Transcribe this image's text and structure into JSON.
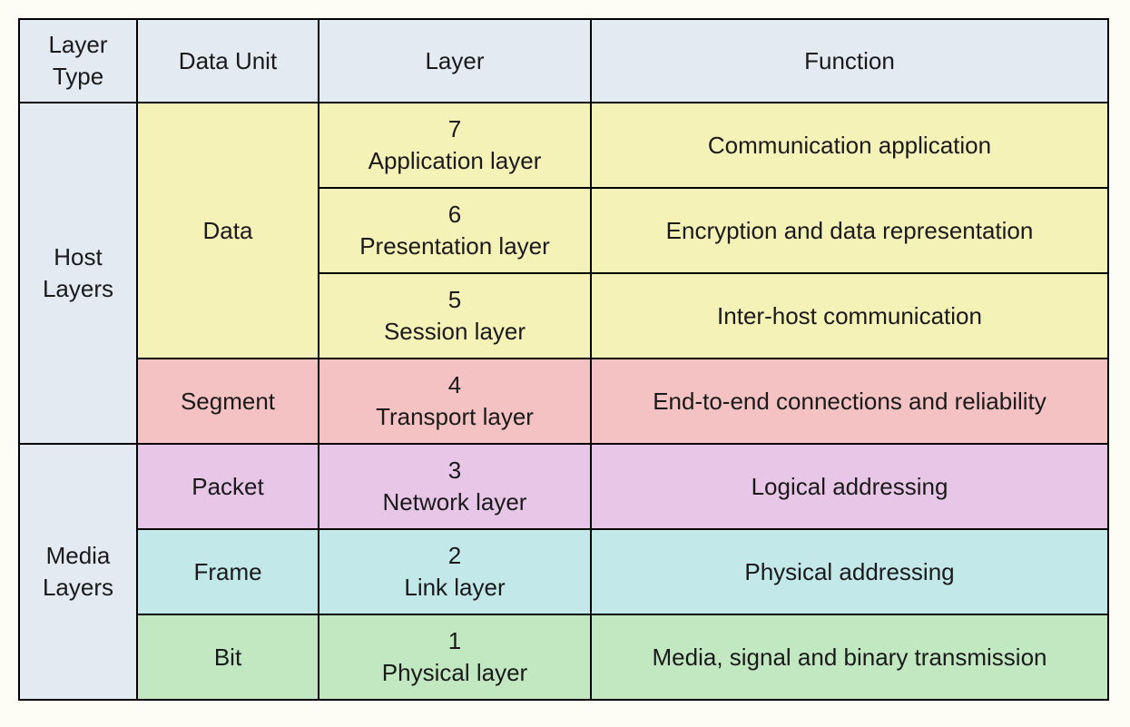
{
  "table": {
    "headers": {
      "layer_type": "Layer Type",
      "data_unit": "Data Unit",
      "layer": "Layer",
      "function": "Function"
    },
    "col_widths": [
      "130px",
      "200px",
      "300px",
      "570px"
    ],
    "groups": [
      {
        "label": "Host Layers",
        "rowspan": 4
      },
      {
        "label": "Media Layers",
        "rowspan": 3
      }
    ],
    "data_units": [
      {
        "label": "Data",
        "rowspan": 3,
        "bg": "#f5f2b8"
      },
      {
        "label": "Segment",
        "rowspan": 1,
        "bg": "#f4c2c2"
      },
      {
        "label": "Packet",
        "rowspan": 1,
        "bg": "#e8c6e8"
      },
      {
        "label": "Frame",
        "rowspan": 1,
        "bg": "#c2e8ea"
      },
      {
        "label": "Bit",
        "rowspan": 1,
        "bg": "#c2e8c2"
      }
    ],
    "rows": [
      {
        "num": "7",
        "layer": "Application layer",
        "function": "Communication application",
        "bg": "#f5f2b8"
      },
      {
        "num": "6",
        "layer": "Presentation layer",
        "function": "Encryption and data representation",
        "bg": "#f5f2b8"
      },
      {
        "num": "5",
        "layer": "Session layer",
        "function": "Inter-host communication",
        "bg": "#f5f2b8"
      },
      {
        "num": "4",
        "layer": "Transport layer",
        "function": "End-to-end connections and reliability",
        "bg": "#f4c2c2"
      },
      {
        "num": "3",
        "layer": "Network layer",
        "function": "Logical addressing",
        "bg": "#e8c6e8"
      },
      {
        "num": "2",
        "layer": "Link layer",
        "function": "Physical addressing",
        "bg": "#c2e8ea"
      },
      {
        "num": "1",
        "layer": "Physical layer",
        "function": "Media, signal and binary transmission",
        "bg": "#c2e8c2"
      }
    ]
  }
}
